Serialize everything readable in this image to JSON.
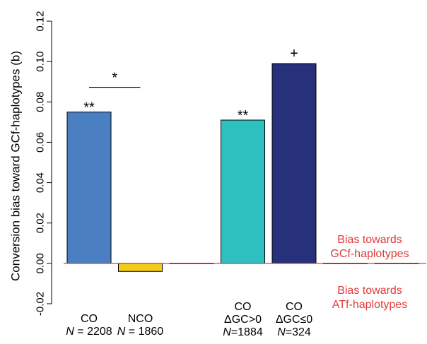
{
  "chart_data": {
    "type": "bar",
    "ylabel": "Conversion bias toward GCf-haplotypes (b)",
    "ylim": [
      -0.02,
      0.12
    ],
    "yticks": [
      "-0.02",
      "0.00",
      "0.02",
      "0.04",
      "0.06",
      "0.08",
      "0.10",
      "0.12"
    ],
    "grid": false,
    "categories": [
      {
        "lines": [
          {
            "text": "CO"
          },
          {
            "italic": "N",
            "text": " = 2208"
          }
        ]
      },
      {
        "lines": [
          {
            "text": "NCO"
          },
          {
            "italic": "N",
            "text": " = 1860"
          }
        ]
      },
      {
        "lines": [
          {
            "text": "CO"
          },
          {
            "text": "ΔGC>0"
          },
          {
            "italic": "N",
            "text": "=1884"
          }
        ]
      },
      {
        "lines": [
          {
            "text": "CO"
          },
          {
            "text": "ΔGC≤0"
          },
          {
            "italic": "N",
            "text": "=324"
          }
        ]
      }
    ],
    "bars": [
      {
        "value": 0.075,
        "color": "#4a7fc1",
        "significance": "**"
      },
      {
        "value": -0.004,
        "color": "#f2cc1a",
        "significance": ""
      },
      {
        "value": 0.0,
        "color": "#ffffff",
        "significance": ""
      },
      {
        "value": 0.071,
        "color": "#2fc0c0",
        "significance": "**"
      },
      {
        "value": 0.099,
        "color": "#27307a",
        "significance": "+"
      },
      {
        "value": 0.0,
        "color": "#ffffff",
        "significance": ""
      },
      {
        "value": 0.0,
        "color": "#ffffff",
        "significance": ""
      }
    ],
    "comparison": {
      "from_bar": 0,
      "to_bar": 1,
      "label": "*"
    },
    "reference_line": {
      "value": 0.0,
      "color": "#e03a3a"
    },
    "annotations": [
      {
        "lines": [
          "Bias towards",
          "GCf-haplotypes"
        ],
        "color": "#e03a3a",
        "position": "above-reference-right"
      },
      {
        "lines": [
          "Bias towards",
          "ATf-haplotypes"
        ],
        "color": "#e03a3a",
        "position": "below-reference-right"
      }
    ]
  }
}
